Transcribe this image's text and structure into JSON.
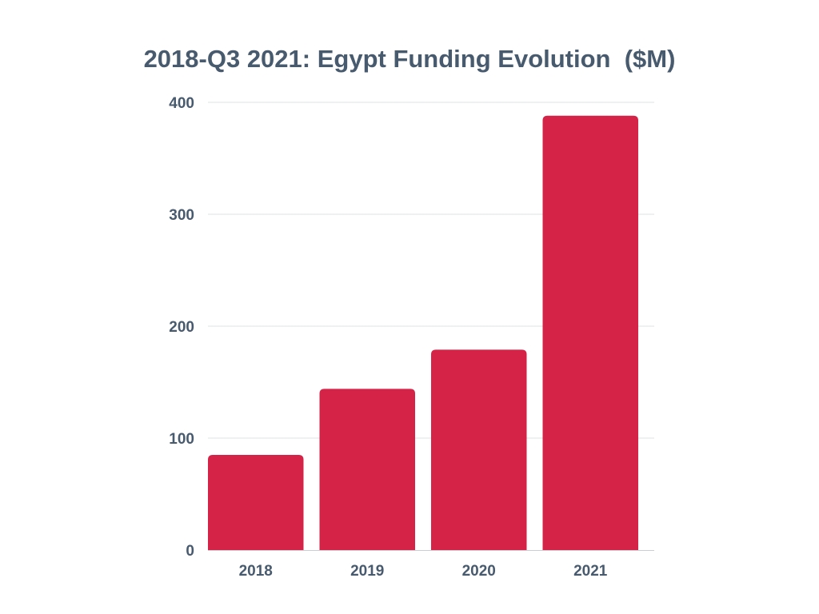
{
  "chart_data": {
    "type": "bar",
    "title": "2018-Q3 2021: Egypt Funding Evolution  ($M)",
    "xlabel": "",
    "ylabel": "",
    "categories": [
      "2018",
      "2019",
      "2020",
      "2021"
    ],
    "values": [
      85,
      144,
      179,
      388
    ],
    "ylim": [
      0,
      400
    ],
    "yticks": [
      0,
      100,
      200,
      300,
      400
    ],
    "grid": true,
    "legend": "none",
    "bar_color": "#d42347"
  }
}
